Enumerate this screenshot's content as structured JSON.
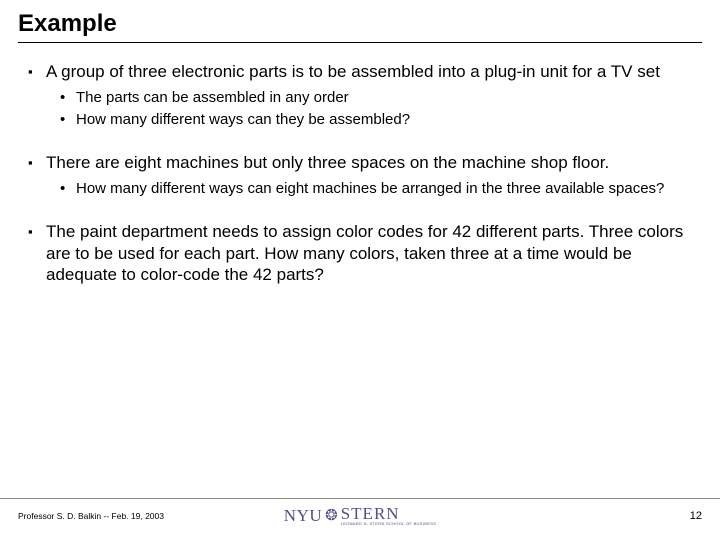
{
  "title": "Example",
  "blocks": [
    {
      "text": "A group of three electronic parts is to be assembled into a plug-in unit for a TV set",
      "sub": [
        "The parts can be assembled in any order",
        "How many different ways can they be assembled?"
      ]
    },
    {
      "text": "There are eight machines but only three spaces on the machine shop floor.",
      "sub": [
        "How many different ways can eight machines be arranged in the three available spaces?"
      ]
    },
    {
      "text": "The paint department needs to assign color codes for 42 different parts.  Three colors are to be used for each part.  How many colors, taken three at a time would be adequate to color-code the 42 parts?",
      "sub": []
    }
  ],
  "footer": {
    "left": "Professor S. D. Balkin -- Feb. 19, 2003",
    "logo_nyu": "NYU",
    "logo_stern": "STERN",
    "logo_sub": "LEONARD N. STERN SCHOOL OF BUSINESS",
    "page": "12"
  },
  "colors": {
    "text": "#000000",
    "logo": "#5a4a8a",
    "background": "#ffffff"
  }
}
